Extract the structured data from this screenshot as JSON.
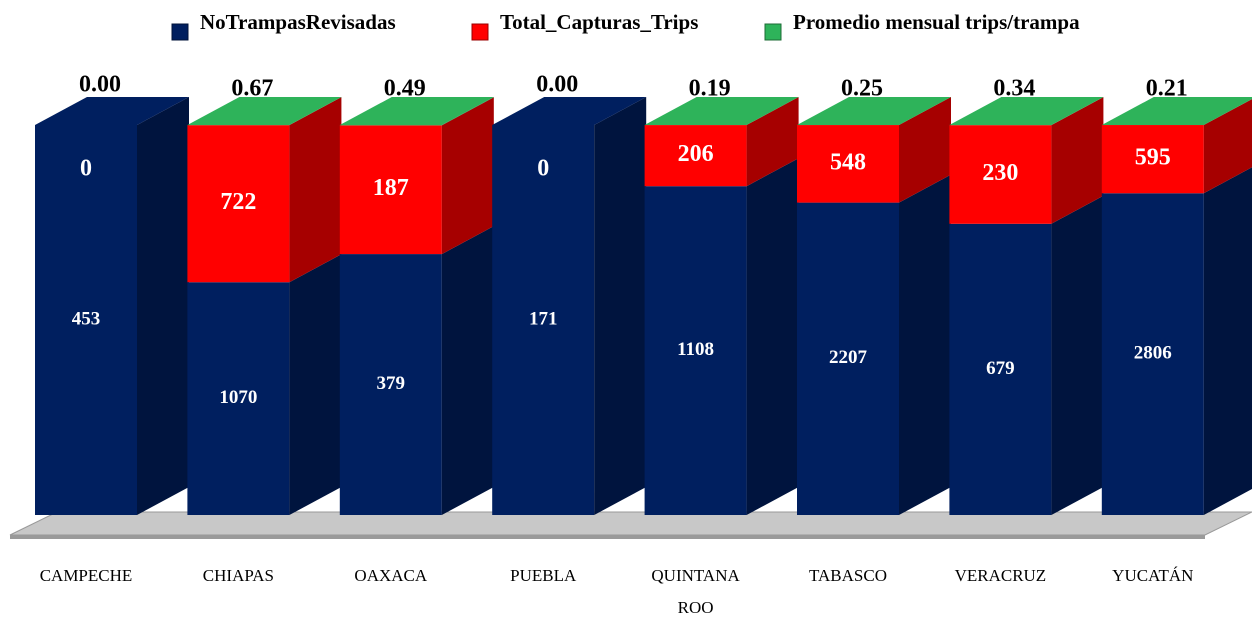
{
  "chart_data": {
    "type": "bar",
    "stacking": "percent",
    "categories": [
      "CAMPECHE",
      "CHIAPAS",
      "OAXACA",
      "PUEBLA",
      "QUINTANA ROO",
      "TABASCO",
      "VERACRUZ",
      "YUCATÁN"
    ],
    "series": [
      {
        "name": "NoTrampasRevisadas",
        "color": "#001f5f",
        "values": [
          453,
          1070,
          379,
          171,
          1108,
          2207,
          679,
          2806
        ]
      },
      {
        "name": "Total_Capturas_Trips",
        "color": "#ff0000",
        "values": [
          0,
          722,
          187,
          0,
          206,
          548,
          230,
          595
        ]
      },
      {
        "name": "Promedio mensual trips/trampa",
        "color": "#2eb35a",
        "values": [
          0,
          0.67,
          0.49,
          0,
          0.19,
          0.25,
          0.34,
          0.21
        ],
        "value_labels": [
          "0.00",
          "0.67",
          "0.49",
          "0.00",
          "0.19",
          "0.25",
          "0.34",
          "0.21"
        ]
      }
    ]
  }
}
